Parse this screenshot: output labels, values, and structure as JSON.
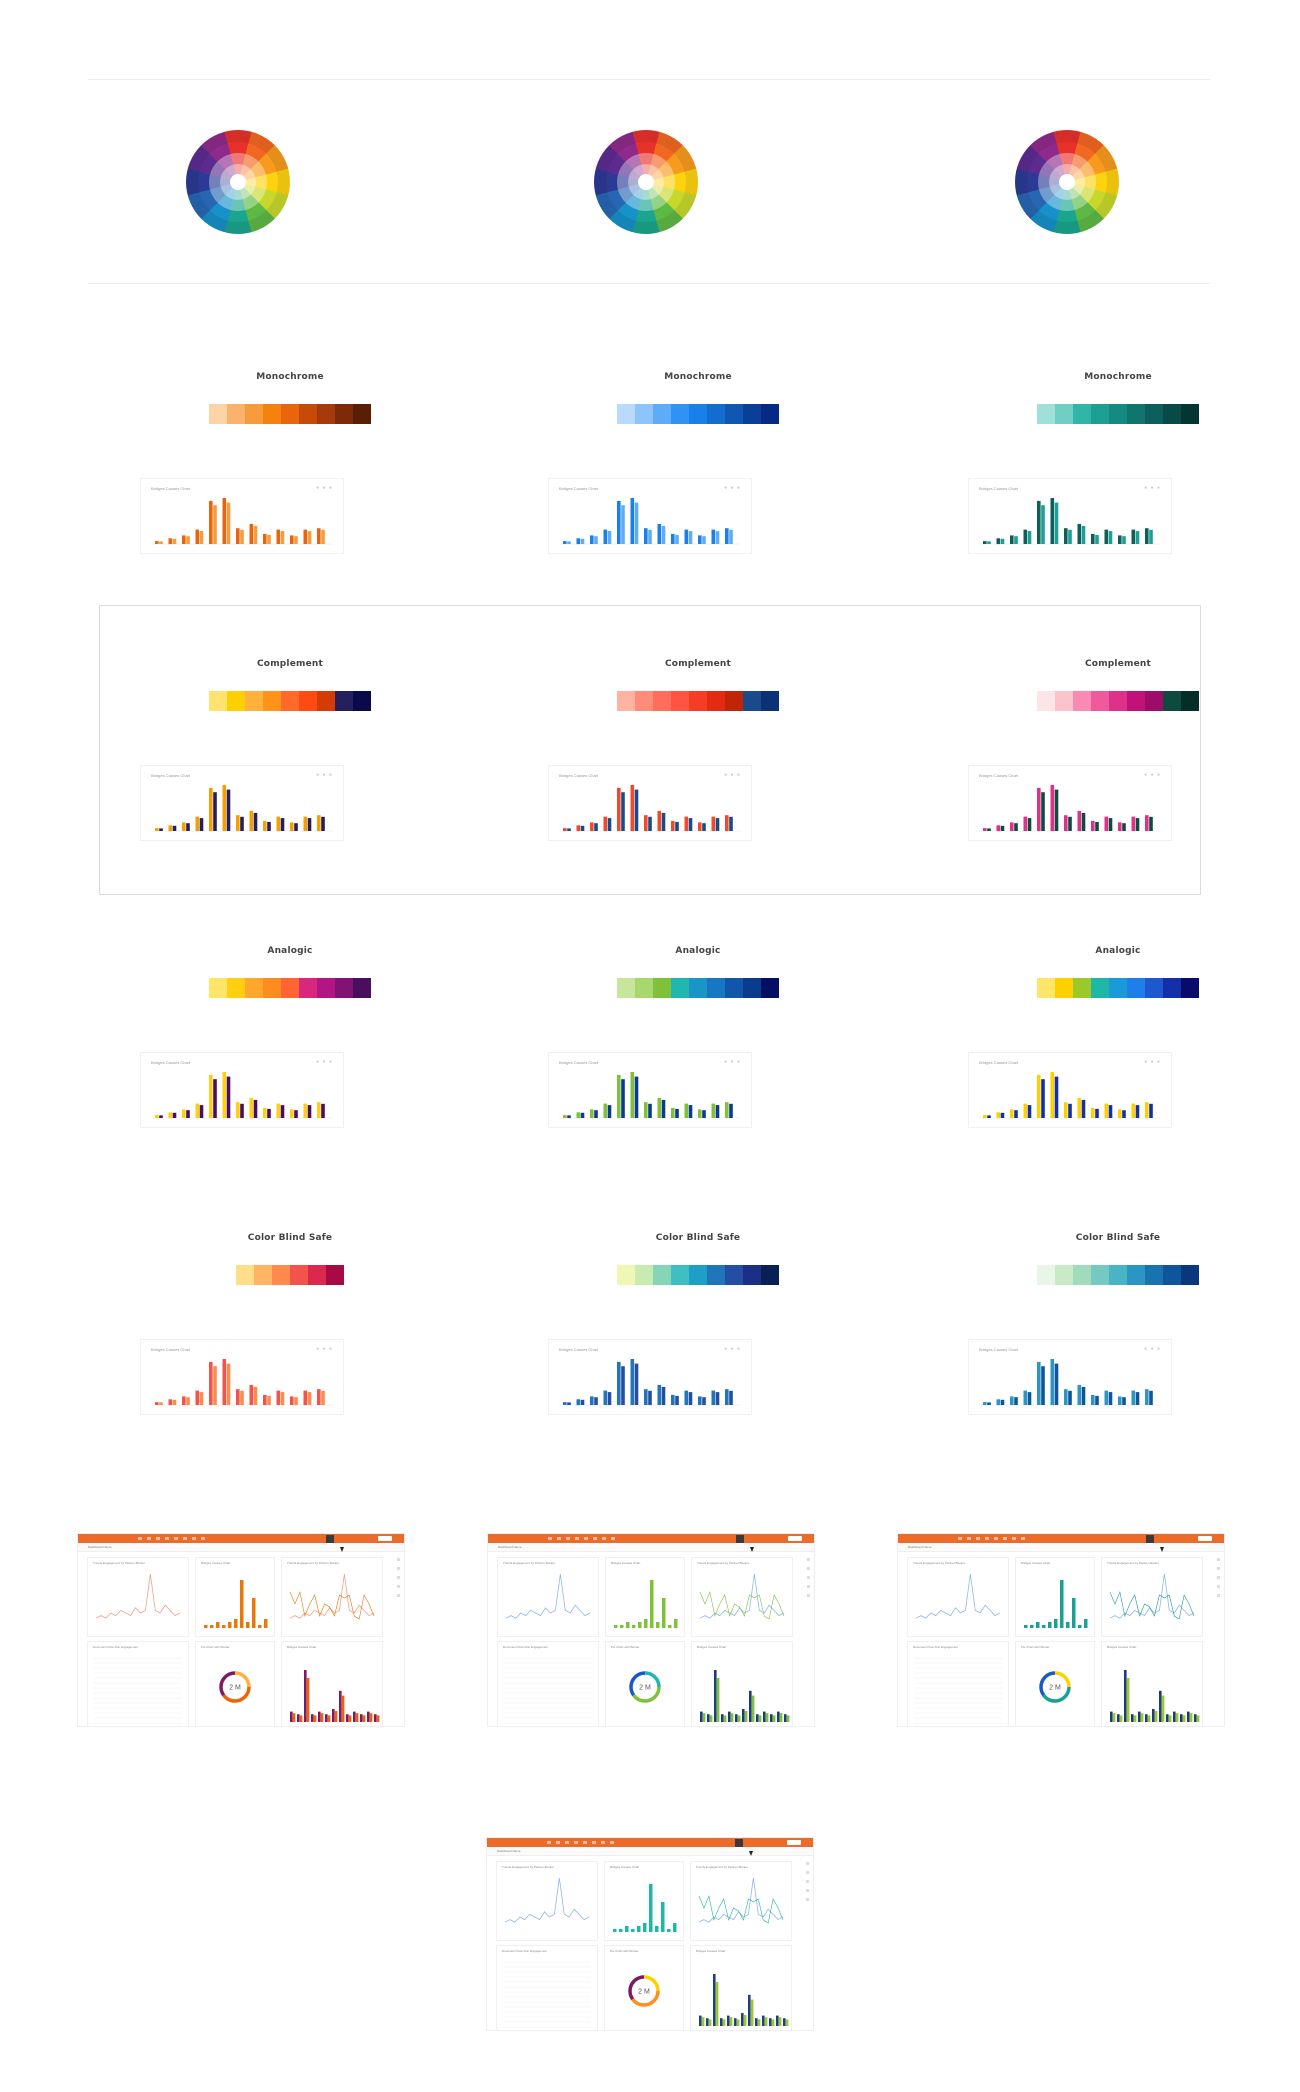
{
  "wheels": [
    {
      "name": "color-wheel-1"
    },
    {
      "name": "color-wheel-2"
    },
    {
      "name": "color-wheel-3"
    }
  ],
  "mini_chart_title": "Bridges Causes Chart",
  "mini_chart_values": [
    2,
    4,
    6,
    10,
    30,
    32,
    11,
    14,
    7,
    10,
    6,
    10,
    11
  ],
  "sections": [
    {
      "id": "monochrome",
      "columns": [
        {
          "title": "Monochrome",
          "palette": [
            "#fdd5a4",
            "#fbb26d",
            "#f89b3c",
            "#f5820e",
            "#e8650b",
            "#c84a08",
            "#a63a0b",
            "#7d2a0a",
            "#5a1e06"
          ],
          "bar_colors": [
            "#e8650b",
            "#f89b3c"
          ]
        },
        {
          "title": "Monochrome",
          "palette": [
            "#b9dafd",
            "#8dc4fb",
            "#5eacf9",
            "#2e93f5",
            "#1880e8",
            "#146ccf",
            "#1057b4",
            "#0a3f99",
            "#052a85"
          ],
          "bar_colors": [
            "#1880e8",
            "#5eacf9"
          ]
        },
        {
          "title": "Monochrome",
          "palette": [
            "#9fe0d8",
            "#6fcfc4",
            "#2fb6a8",
            "#1d9f93",
            "#158a80",
            "#10756d",
            "#0c5f5a",
            "#084a47",
            "#053533"
          ],
          "bar_colors": [
            "#0c5f5a",
            "#1d9f93"
          ]
        }
      ]
    },
    {
      "id": "complement",
      "columns": [
        {
          "title": "Complement",
          "palette": [
            "#ffe270",
            "#ffd000",
            "#ffb13b",
            "#ff9418",
            "#ff6a28",
            "#ff4b12",
            "#d63b06",
            "#261f5e",
            "#0a0a4a"
          ],
          "bar_colors": [
            "#f5a000",
            "#261f5e"
          ]
        },
        {
          "title": "Complement",
          "palette": [
            "#ffb3a0",
            "#ff8c78",
            "#ff6e5a",
            "#ff5540",
            "#f53c25",
            "#e42a12",
            "#c02507",
            "#1b4a8c",
            "#0b3275"
          ],
          "bar_colors": [
            "#f04a2c",
            "#1b4a8c"
          ]
        },
        {
          "title": "Complement",
          "palette": [
            "#fde4e6",
            "#fbc4cc",
            "#f78bb3",
            "#ef5a9c",
            "#e0318a",
            "#c3117a",
            "#9c0d6a",
            "#0f4a40",
            "#052e28"
          ],
          "bar_colors": [
            "#e0318a",
            "#0f4a40"
          ]
        }
      ]
    },
    {
      "id": "analogic",
      "columns": [
        {
          "title": "Analogic",
          "palette": [
            "#ffe66b",
            "#ffcf10",
            "#ffa82d",
            "#ff8c1e",
            "#ff6433",
            "#d9277d",
            "#b11683",
            "#801373",
            "#4a0e5e"
          ],
          "bar_colors": [
            "#ffcf10",
            "#4a0e5e"
          ]
        },
        {
          "title": "Analogic",
          "palette": [
            "#c7e69c",
            "#a7d86e",
            "#7fc23a",
            "#1fb7b0",
            "#1a95c6",
            "#1877c3",
            "#1256ab",
            "#0a3b8c",
            "#040e63"
          ],
          "bar_colors": [
            "#7fc23a",
            "#0a3b8c"
          ]
        },
        {
          "title": "Analogic",
          "palette": [
            "#ffe66b",
            "#ffd000",
            "#9bc92a",
            "#1fb7a5",
            "#1a9ad7",
            "#1f7fe8",
            "#1d58d0",
            "#1430a6",
            "#0a0a6b"
          ],
          "bar_colors": [
            "#ffd000",
            "#1430a6"
          ]
        }
      ]
    },
    {
      "id": "colorblind",
      "columns": [
        {
          "title": "Color Blind Safe",
          "palette": [
            "#ffde8a",
            "#ffb563",
            "#ff8a4e",
            "#f2534a",
            "#d9294d",
            "#a80a45"
          ],
          "bar_colors": [
            "#f2534a",
            "#ff8a4e"
          ]
        },
        {
          "title": "Color Blind Safe",
          "palette": [
            "#f0f7b5",
            "#c8ebb0",
            "#85d6b6",
            "#40bec2",
            "#1d9fc6",
            "#1f76b9",
            "#234ea3",
            "#1b2f86",
            "#091f56"
          ],
          "bar_colors": [
            "#1f76b9",
            "#234ea3"
          ]
        },
        {
          "title": "Color Blind Safe",
          "palette": [
            "#e8f6e7",
            "#c9eac6",
            "#a0dbbc",
            "#74c9c0",
            "#4bb3c6",
            "#2b95c3",
            "#1a73b1",
            "#0f559b",
            "#08377d"
          ],
          "bar_colors": [
            "#2b95c3",
            "#0f559b"
          ]
        }
      ]
    }
  ],
  "dashboard": {
    "breadcrumb": "Dashboard Name",
    "cards": [
      "Trends Engagement by Partner Bucket",
      "Bridges Causes Chart",
      "Trends Engagement by Partner Bucket",
      "Document Flow Run Engagement",
      "Pie Chart with Border",
      "Bridges Causes Chart"
    ],
    "donut_value": "2 M",
    "variants": [
      {
        "line": "#f3a08a",
        "bar": "#e8780b",
        "donut": [
          "#e8650b",
          "#7d1a66",
          "#ffb13b"
        ],
        "bar2": [
          "#7d1a66",
          "#e8650b"
        ]
      },
      {
        "line": "#8fb8e8",
        "bar": "#7fc23a",
        "donut": [
          "#7fc23a",
          "#1a58c6",
          "#1fb7b0"
        ],
        "bar2": [
          "#1a3c7a",
          "#7fc23a"
        ]
      },
      {
        "line": "#8fb8e8",
        "bar": "#1d9f93",
        "donut": [
          "#1d9f93",
          "#1a58c6",
          "#ffd000"
        ],
        "bar2": [
          "#1a3c7a",
          "#9bc92a"
        ]
      },
      {
        "line": "#8fb8e8",
        "bar": "#1fb7a5",
        "donut": [
          "#ff8c1e",
          "#7d1a66",
          "#ffd000"
        ],
        "bar2": [
          "#1d3f86",
          "#9bc92a"
        ]
      }
    ]
  }
}
